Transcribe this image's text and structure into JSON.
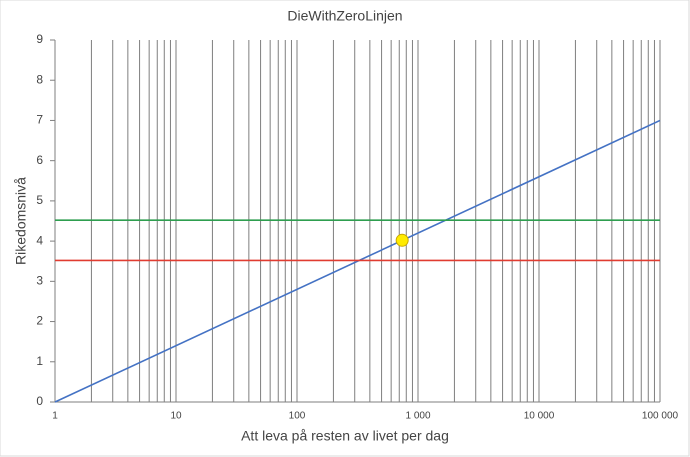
{
  "chart_data": {
    "type": "line",
    "title": "DieWithZeroLinjen",
    "x_label": "Att leva på resten av livet per dag",
    "y_label": "Rikedomsnivå",
    "log_x": true,
    "minor_grid": true,
    "xlim": [
      1,
      100000
    ],
    "xticks": [
      1,
      10,
      100,
      {
        "value": 1000,
        "label": "1 000"
      },
      {
        "value": 10000,
        "label": "10 000"
      },
      {
        "value": 100000,
        "label": "100 000"
      }
    ],
    "ylim": [
      0,
      9
    ],
    "yticks": [
      0,
      1,
      2,
      3,
      4,
      5,
      6,
      7,
      8,
      9
    ],
    "series": [
      {
        "color": "#4472c4",
        "x": [
          1,
          100000
        ],
        "values": [
          0,
          7
        ]
      },
      {
        "color": "#2e9e4f",
        "x": [
          1,
          100000
        ],
        "values": [
          4.52,
          4.52
        ]
      },
      {
        "color": "#e03c31",
        "x": [
          1,
          100000
        ],
        "values": [
          3.52,
          3.52
        ]
      },
      {
        "color": "#ffeb00",
        "x": [
          740
        ],
        "values": [
          4.02
        ],
        "marker": true
      }
    ]
  }
}
